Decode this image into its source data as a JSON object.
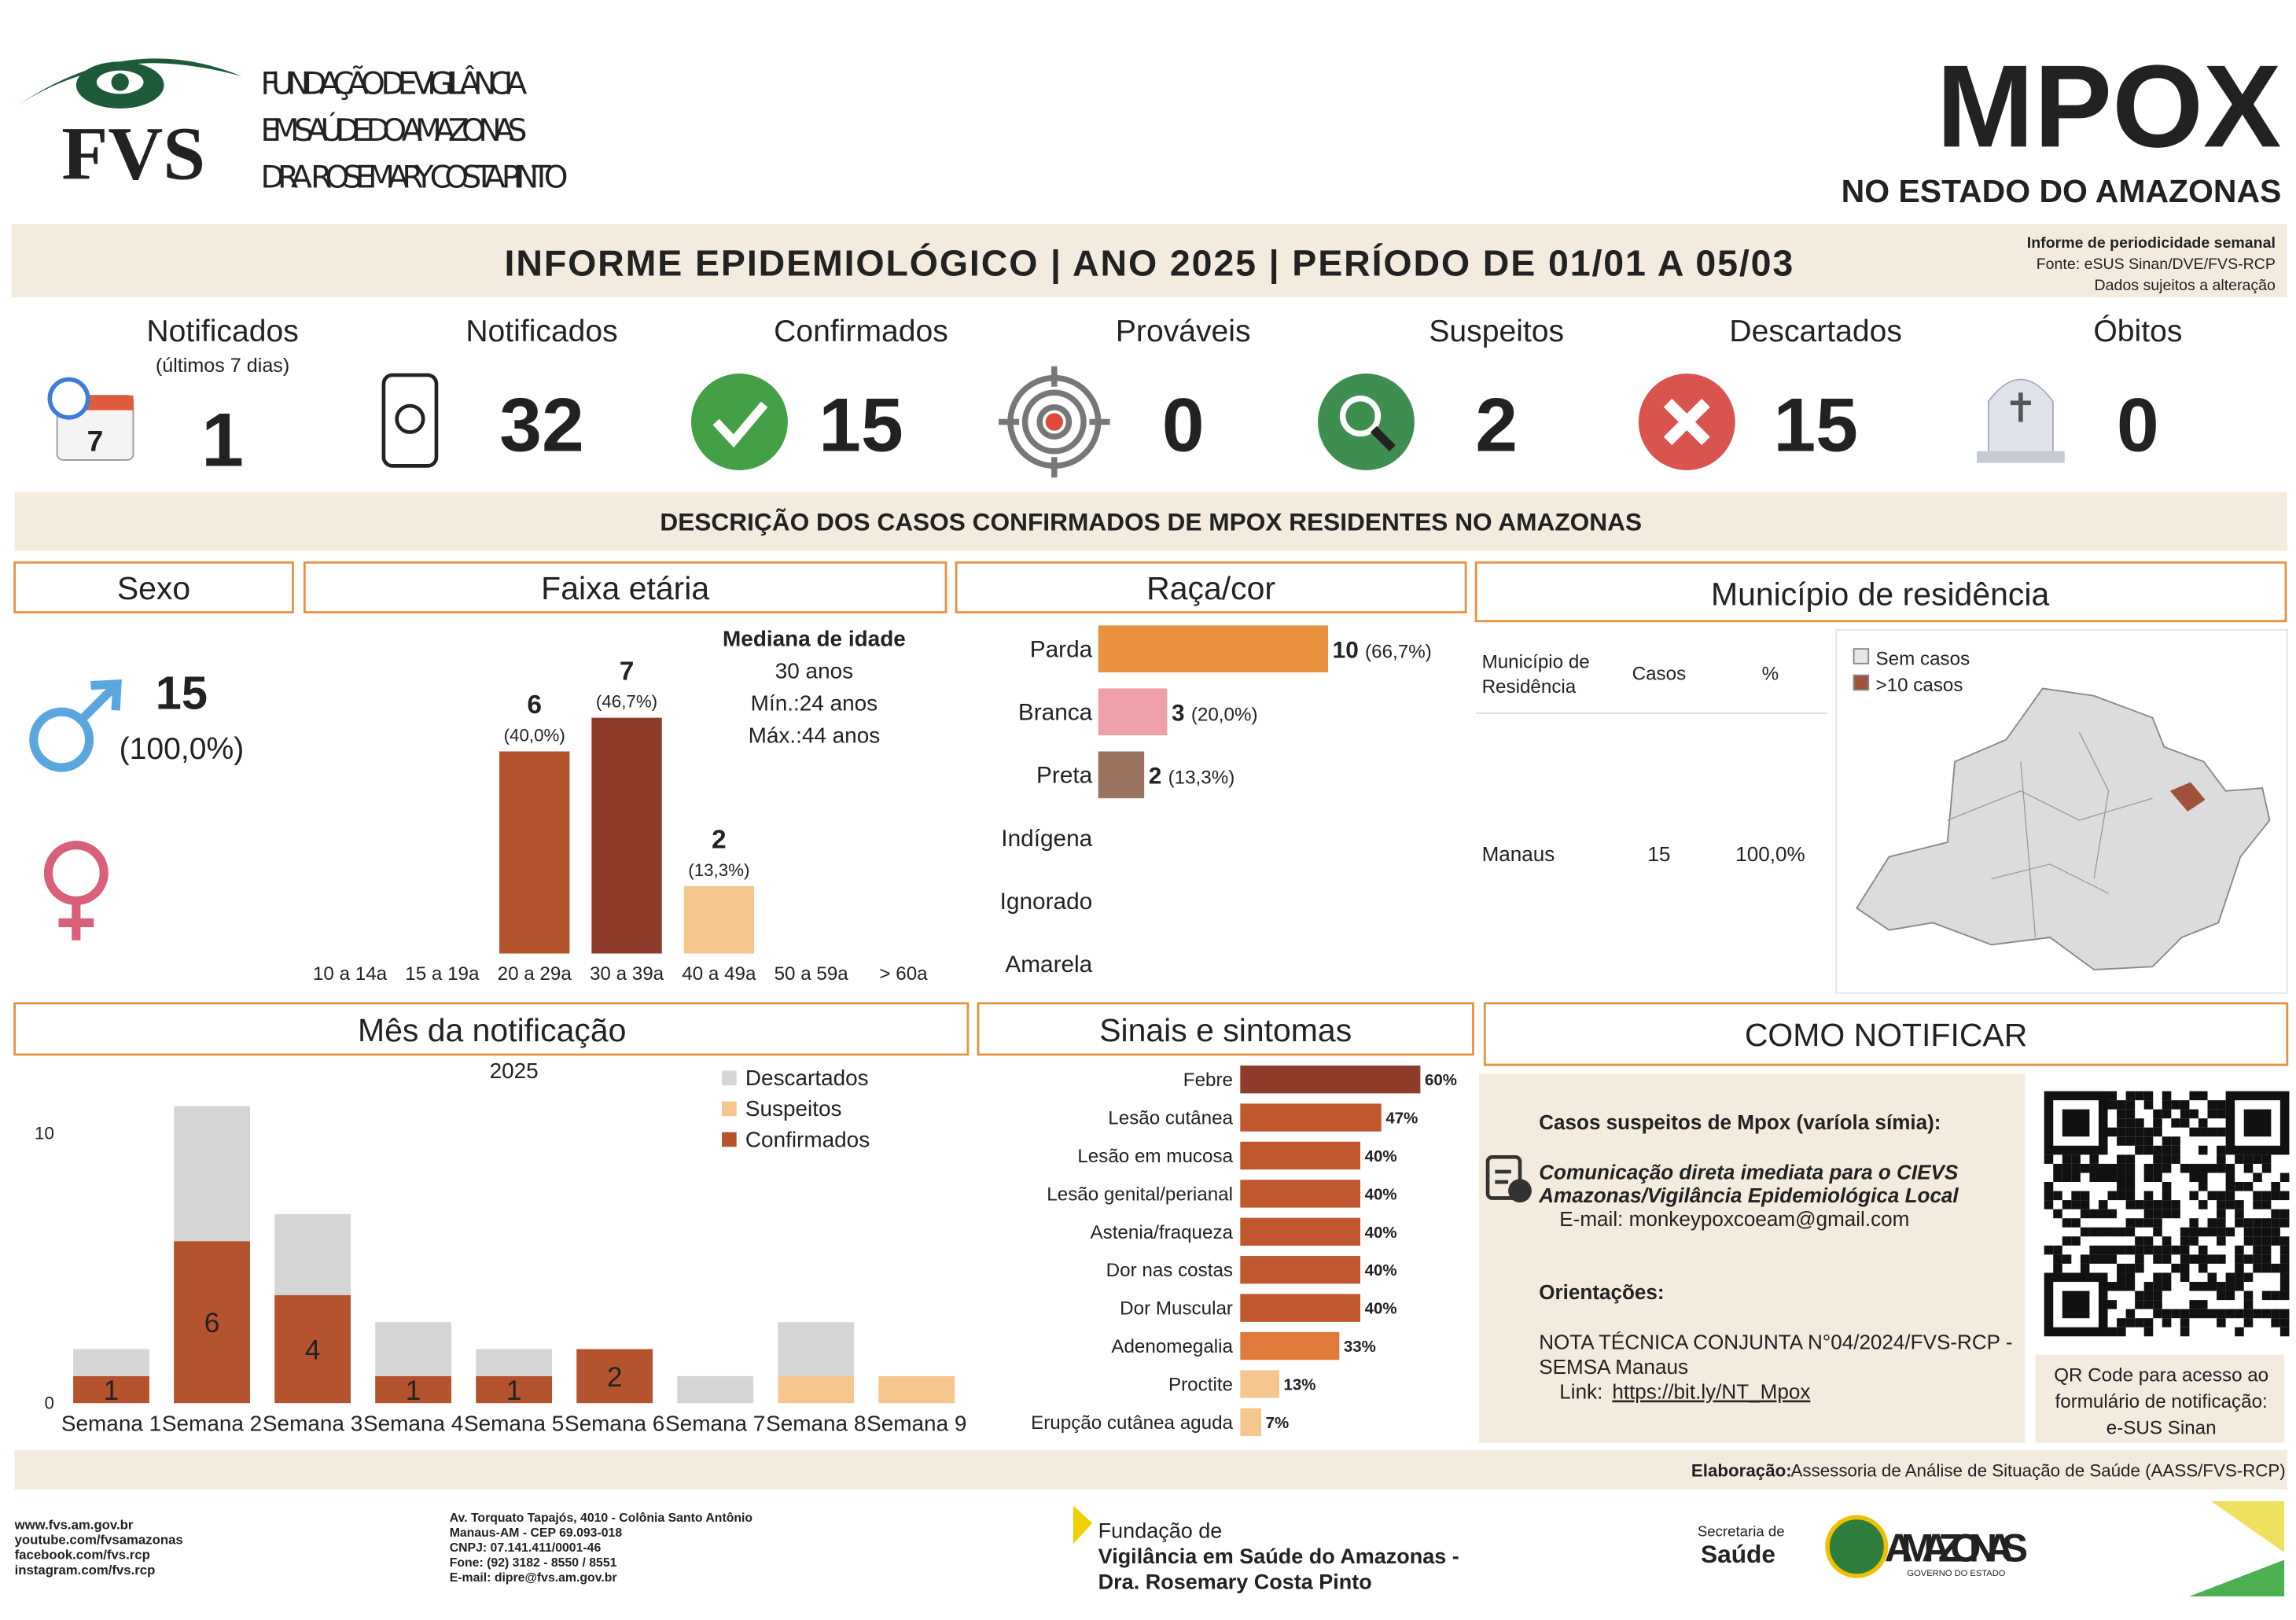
{
  "header": {
    "logo_text": "FVS",
    "org_lines": [
      "FUNDAÇÃO DE VIGILÂNCIA",
      "EM SAÚDE DO AMAZONAS",
      "DRA. ROSEMARY COSTA PINTO"
    ],
    "title": "MPOX",
    "subtitle": "NO ESTADO DO AMAZONAS"
  },
  "banner": {
    "title": "INFORME EPIDEMIOLÓGICO | ANO 2025 | PERÍODO DE 01/01 A 05/03",
    "notes": [
      "Informe de periodicidade semanal",
      "Fonte: eSUS Sinan/DVE/FVS-RCP",
      "Dados sujeitos a alteração"
    ]
  },
  "kpis": [
    {
      "label": "Notificados",
      "sublabel": "(últimos 7 dias)",
      "icon_text": "7",
      "value": 1
    },
    {
      "label": "Notificados",
      "value": 32
    },
    {
      "label": "Confirmados",
      "value": 15
    },
    {
      "label": "Prováveis",
      "value": 0
    },
    {
      "label": "Suspeitos",
      "value": 2
    },
    {
      "label": "Descartados",
      "value": 15
    },
    {
      "label": "Óbitos",
      "value": 0
    }
  ],
  "section_title": "DESCRIÇÃO DOS CASOS CONFIRMADOS DE MPOX RESIDENTES NO AMAZONAS",
  "sexo": {
    "title": "Sexo",
    "count": 15,
    "percent": "(100,0%)"
  },
  "municipio": {
    "title": "Município de residência",
    "columns": [
      [
        "Município de",
        "Residência"
      ],
      "Casos",
      "%"
    ],
    "rows": [
      [
        "Manaus",
        15,
        "100,0%"
      ]
    ],
    "map_legend": [
      "Sem casos",
      ">10 casos"
    ]
  },
  "chart_data": [
    {
      "type": "bar",
      "title": "Faixa etária",
      "categories": [
        "10 a 14a",
        "15 a 19a",
        "20 a 29a",
        "30 a 39a",
        "40 a 49a",
        "50 a 59a",
        "> 60a"
      ],
      "values": [
        null,
        null,
        6,
        7,
        2,
        null,
        null
      ],
      "percent_labels": [
        null,
        null,
        "(40,0%)",
        "(46,7%)",
        "(13,3%)",
        null,
        null
      ],
      "colors": [
        null,
        null,
        "#b5532f",
        "#8e3b2a",
        "#f5c78f",
        null,
        null
      ],
      "notes": [
        "Mediana de idade",
        "30 anos",
        "Mín.:24 anos",
        "Máx.:44 anos"
      ]
    },
    {
      "type": "hbar",
      "title": "Raça/cor",
      "categories": [
        "Parda",
        "Branca",
        "Preta",
        "Indígena",
        "Ignorado",
        "Amarela"
      ],
      "values": [
        10,
        3,
        2,
        null,
        null,
        null
      ],
      "percent_labels": [
        "(66,7%)",
        "(20,0%)",
        "(13,3%)",
        null,
        null,
        null
      ],
      "colors": [
        "#e8923f",
        "#f0a0a8",
        "#9b7460",
        null,
        null,
        null
      ]
    },
    {
      "type": "stacked_bar",
      "title": "Mês da notificação",
      "subtitle": "2025",
      "categories": [
        "Semana 1",
        "Semana 2",
        "Semana 3",
        "Semana 4",
        "Semana 5",
        "Semana 6",
        "Semana 7",
        "Semana 8",
        "Semana 9"
      ],
      "ylim": [
        0,
        12.8
      ],
      "yticks": [
        0,
        10
      ],
      "series": [
        {
          "name": "Confirmados",
          "color": "#b5532f",
          "labels": true,
          "values": [
            1,
            6,
            4,
            1,
            1,
            2,
            null,
            null,
            null
          ]
        },
        {
          "name": "Suspeitos",
          "color": "#f5c78f",
          "values": [
            null,
            null,
            null,
            null,
            null,
            null,
            null,
            1,
            1
          ]
        },
        {
          "name": "Descartados",
          "color": "#d6d6d6",
          "values": [
            1,
            5,
            3,
            2,
            1,
            null,
            1,
            2,
            null
          ]
        }
      ]
    },
    {
      "type": "hbar",
      "title": "Sinais e sintomas",
      "categories": [
        "Febre",
        "Lesão cutânea",
        "Lesão em mucosa",
        "Lesão genital/perianal",
        "Astenia/fraqueza",
        "Dor nas costas",
        "Dor Muscular",
        "Adenomegalia",
        "Proctite",
        "Erupção cutânea aguda"
      ],
      "values": [
        60,
        47,
        40,
        40,
        40,
        40,
        40,
        33,
        13,
        7
      ],
      "value_labels": [
        "60%",
        "47%",
        "40%",
        "40%",
        "40%",
        "40%",
        "40%",
        "33%",
        "13%",
        "7%"
      ],
      "colors": [
        "#8e3b2a",
        "#c0572f",
        "#c0572f",
        "#c0572f",
        "#c0572f",
        "#c0572f",
        "#c0572f",
        "#e07a3a",
        "#f5c78f",
        "#f5c78f"
      ]
    }
  ],
  "como_notificar": {
    "title": "COMO NOTIFICAR",
    "heading": "Casos suspeitos de Mpox (varíola símia):",
    "instructions": [
      "Comunicação direta imediata para o CIEVS",
      "Amazonas/Vigilância Epidemiológica Local"
    ],
    "email": "E-mail: monkeypoxcoeam@gmail.com",
    "orient_title": "Orientações:",
    "nota": [
      "NOTA TÉCNICA CONJUNTA N°04/2024/FVS-RCP -",
      "SEMSA Manaus"
    ],
    "link_label": "Link:",
    "link": "https://bit.ly/NT_Mpox",
    "qr_caption": [
      "QR Code para acesso ao",
      "formulário de notificação:",
      "e-SUS Sinan"
    ]
  },
  "footer": {
    "elaboracao_label": "Elaboração:",
    "elaboracao": "Assessoria de Análise de Situação de Saúde (AASS/FVS-RCP)",
    "contacts": [
      "www.fvs.am.gov.br",
      "youtube.com/fvsamazonas",
      "facebook.com/fvs.rcp",
      "instagram.com/fvs.rcp"
    ],
    "address": [
      "Av. Torquato Tapajós, 4010 - Colônia Santo Antônio",
      "Manaus-AM - CEP 69.093-018",
      "CNPJ: 07.141.411/0001-46",
      "Fone: (92) 3182 - 8550 / 8551",
      "E-mail: dipre@fvs.am.gov.br"
    ],
    "fvs_lines": [
      "Fundação de",
      "Vigilância em Saúde do Amazonas -",
      "Dra. Rosemary Costa Pinto"
    ],
    "secretaria": [
      "Secretaria de",
      "Saúde"
    ],
    "amazonas": "AMAZONAS",
    "governo": "GOVERNO DO ESTADO"
  }
}
